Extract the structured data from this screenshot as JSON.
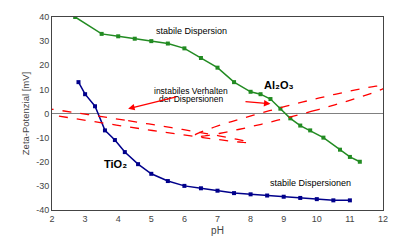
{
  "chart_data": {
    "type": "line",
    "xlabel": "pH",
    "ylabel": "Zeta-Potenzial [mV]",
    "xlim": [
      2,
      12
    ],
    "ylim": [
      -40,
      40
    ],
    "xticks": [
      2,
      3,
      4,
      5,
      6,
      7,
      8,
      9,
      10,
      11,
      12
    ],
    "yticks": [
      -40,
      -30,
      -20,
      -10,
      0,
      10,
      20,
      30,
      40
    ],
    "grid": false,
    "series": [
      {
        "name": "Al₂O₃",
        "color": "#228B22",
        "marker": "square",
        "x": [
          2.7,
          3.5,
          4.0,
          4.5,
          5.0,
          5.5,
          6.0,
          6.5,
          7.0,
          7.5,
          8.0,
          8.3,
          8.6,
          8.9,
          9.2,
          9.5,
          9.8,
          10.2,
          10.7,
          11.0,
          11.3
        ],
        "values": [
          40,
          33,
          32,
          31,
          30,
          29,
          27,
          23,
          19,
          13,
          9,
          8,
          6,
          2,
          -2,
          -5,
          -7,
          -10,
          -15,
          -18,
          -20
        ]
      },
      {
        "name": "TiO₂",
        "color": "#00008B",
        "marker": "square",
        "x": [
          2.8,
          3.0,
          3.3,
          3.6,
          3.9,
          4.2,
          4.6,
          5.0,
          5.5,
          6.0,
          6.5,
          7.0,
          7.5,
          8.0,
          8.5,
          9.0,
          9.5,
          10.0,
          10.5,
          11.0
        ],
        "values": [
          13,
          8,
          3,
          -7,
          -11,
          -16,
          -21,
          -25,
          -28,
          -30,
          -31,
          -32,
          -33,
          -33.5,
          -34,
          -34.5,
          -35,
          -35.5,
          -36,
          -36
        ]
      }
    ],
    "annotations": [
      "stabile Dispersion",
      "stabile Dispersionen",
      "instabiles Verhalten",
      "der Dispersionen"
    ]
  }
}
